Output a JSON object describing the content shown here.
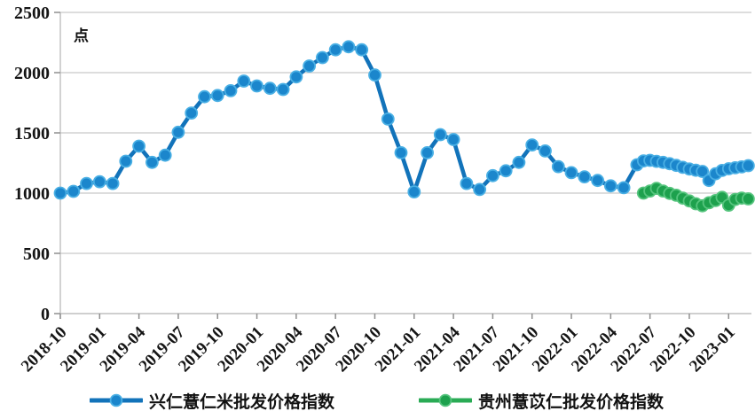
{
  "chart_data": {
    "type": "line",
    "title": "",
    "ylabel": "点",
    "ylim": [
      0,
      2500
    ],
    "yticks": [
      0,
      500,
      1000,
      1500,
      2000,
      2500
    ],
    "xtick_labels": [
      "2018-10",
      "2019-01",
      "2019-04",
      "2019-07",
      "2019-10",
      "2020-01",
      "2020-04",
      "2020-07",
      "2020-10",
      "2021-01",
      "2021-04",
      "2021-07",
      "2021-10",
      "2022-01",
      "2022-04",
      "2022-07",
      "2022-10",
      "2023-01"
    ],
    "xtick_month_step": 3,
    "grid": "horizontal-only",
    "legend_position": "bottom",
    "grid_color": "#d2d2d2",
    "axis_color": "#bfbfbf",
    "tick_color": "#8f8f8f",
    "series": [
      {
        "name": "兴仁薏仁米批发价格指数",
        "color": "#1273ba",
        "marker_fill": "#1b86cc",
        "marker_ring": "#49afe4",
        "x_months": [
          0,
          1,
          2,
          3,
          4,
          5,
          6,
          7,
          8,
          9,
          10,
          11,
          12,
          13,
          14,
          15,
          16,
          17,
          18,
          19,
          20,
          21,
          22,
          23,
          24,
          25,
          26,
          27,
          28,
          29,
          30,
          31,
          32,
          33,
          34,
          35,
          36,
          37,
          38,
          39,
          40,
          41,
          42,
          43,
          44,
          44.5,
          45,
          45.5,
          46,
          46.5,
          47,
          47.5,
          48,
          48.5,
          49,
          49.5,
          50,
          50.5,
          51,
          51.5,
          52,
          52.5
        ],
        "values": [
          1000,
          1015,
          1080,
          1095,
          1080,
          1265,
          1390,
          1255,
          1315,
          1505,
          1665,
          1800,
          1810,
          1850,
          1930,
          1890,
          1870,
          1860,
          1965,
          2055,
          2125,
          2190,
          2215,
          2190,
          1980,
          1615,
          1335,
          1010,
          1335,
          1485,
          1445,
          1080,
          1030,
          1145,
          1185,
          1255,
          1400,
          1350,
          1220,
          1170,
          1135,
          1105,
          1060,
          1045,
          1235,
          1268,
          1272,
          1264,
          1255,
          1244,
          1230,
          1214,
          1200,
          1190,
          1180,
          1105,
          1160,
          1188,
          1202,
          1210,
          1218,
          1228
        ]
      },
      {
        "name": "贵州薏苡仁批发价格指数",
        "color": "#2aab55",
        "marker_fill": "#1da14d",
        "marker_ring": "#55c47d",
        "x_months": [
          44.5,
          45,
          45.5,
          46,
          46.5,
          47,
          47.5,
          48,
          48.5,
          49,
          49.5,
          50,
          50.5,
          51,
          51.5,
          52,
          52.5
        ],
        "values": [
          1000,
          1018,
          1040,
          1018,
          998,
          982,
          958,
          935,
          912,
          895,
          920,
          938,
          965,
          900,
          948,
          958,
          952
        ]
      }
    ]
  }
}
